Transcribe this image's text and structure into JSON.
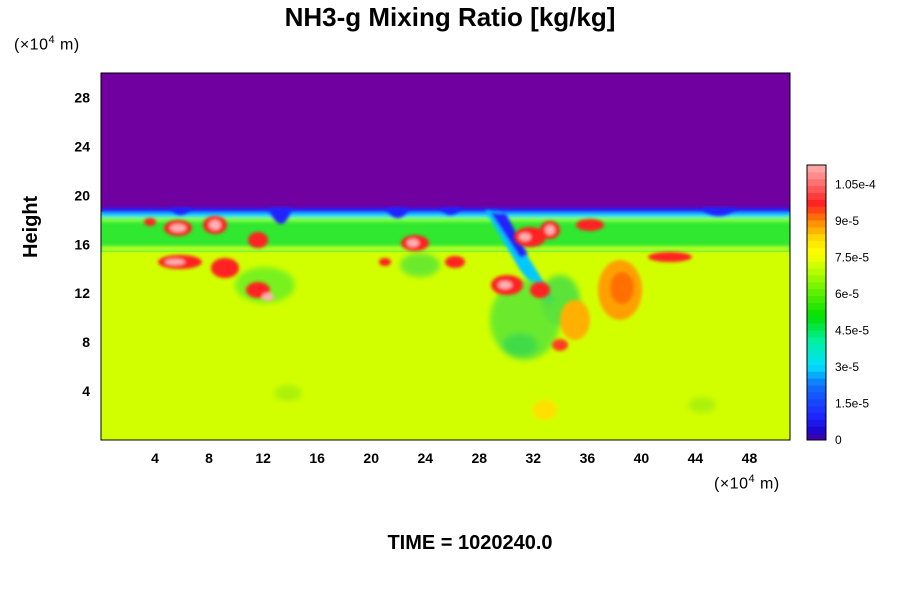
{
  "chart_data": {
    "type": "heatmap",
    "title": "NH3-g Mixing Ratio [kg/kg]",
    "ylabel": "Height",
    "y_unit": "(×10⁴ m)",
    "x_unit": "(×10⁴ m)",
    "unit_base": "(×10",
    "unit_exp": "4",
    "unit_tail": " m)",
    "x_ticks": [
      "4",
      "8",
      "12",
      "16",
      "20",
      "24",
      "28",
      "32",
      "36",
      "40",
      "44",
      "48"
    ],
    "y_ticks": [
      "4",
      "8",
      "12",
      "16",
      "20",
      "24",
      "28"
    ],
    "xlim": [
      0,
      51
    ],
    "ylim": [
      0,
      30
    ],
    "colorbar_ticks": [
      "0",
      "1.5e-5",
      "3e-5",
      "4.5e-5",
      "6e-5",
      "7.5e-5",
      "9e-5",
      "1.05e-4"
    ],
    "colorbar_range": [
      0,
      0.000113
    ],
    "colors": [
      "#7000a0",
      "#2020ff",
      "#00e0ff",
      "#00e000",
      "#c8ff00",
      "#ffe000",
      "#ff8000",
      "#ff2020",
      "#ffb0b0"
    ],
    "regions": [
      {
        "name": "upper",
        "y_from": 18.5,
        "y_to": 30,
        "value": 0
      },
      {
        "name": "middle",
        "y_from": 15.2,
        "y_to": 18.5,
        "value": 6e-05
      },
      {
        "name": "lower",
        "y_from": 0,
        "y_to": 15.2,
        "value": 8e-05
      }
    ]
  },
  "time_label": "TIME = 1020240.0"
}
